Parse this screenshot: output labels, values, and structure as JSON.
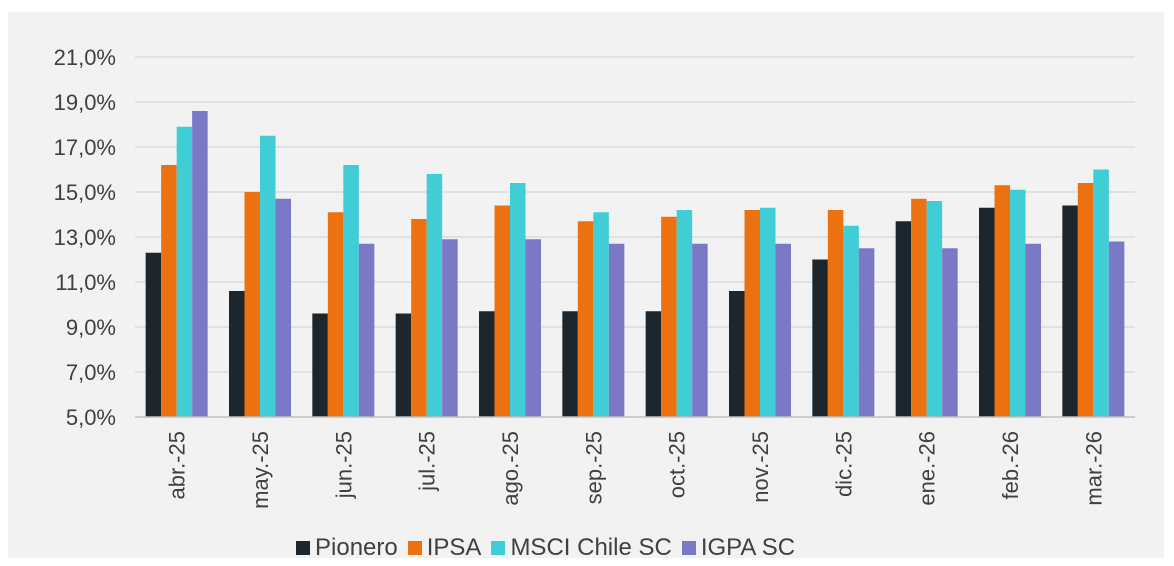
{
  "chart_data": {
    "type": "bar",
    "categories": [
      "abr.-25",
      "may.-25",
      "jun.-25",
      "jul.-25",
      "ago.-25",
      "sep.-25",
      "oct.-25",
      "nov.-25",
      "dic.-25",
      "ene.-26",
      "feb.-26",
      "mar.-26"
    ],
    "series": [
      {
        "name": "Pionero",
        "color": "#1d252d",
        "values": [
          12.3,
          10.6,
          9.6,
          9.6,
          9.7,
          9.7,
          9.7,
          10.6,
          12.0,
          13.7,
          14.3,
          14.4
        ]
      },
      {
        "name": "IPSA",
        "color": "#ec7211",
        "values": [
          16.2,
          15.0,
          14.1,
          13.8,
          14.4,
          13.7,
          13.9,
          14.2,
          14.2,
          14.7,
          15.3,
          15.4
        ]
      },
      {
        "name": "MSCI Chile SC",
        "color": "#40cdd6",
        "values": [
          17.9,
          17.5,
          16.2,
          15.8,
          15.4,
          14.1,
          14.2,
          14.3,
          13.5,
          14.6,
          15.1,
          16.0
        ]
      },
      {
        "name": "IGPA SC",
        "color": "#7b79c6",
        "values": [
          18.6,
          14.7,
          12.7,
          12.9,
          12.9,
          12.7,
          12.7,
          12.7,
          12.5,
          12.5,
          12.7,
          12.8
        ]
      }
    ],
    "y_ticks": [
      "5,0%",
      "7,0%",
      "9,0%",
      "11,0%",
      "13,0%",
      "15,0%",
      "17,0%",
      "19,0%",
      "21,0%"
    ],
    "ylim": [
      5,
      21
    ],
    "grid": true,
    "legend_position": "bottom"
  }
}
